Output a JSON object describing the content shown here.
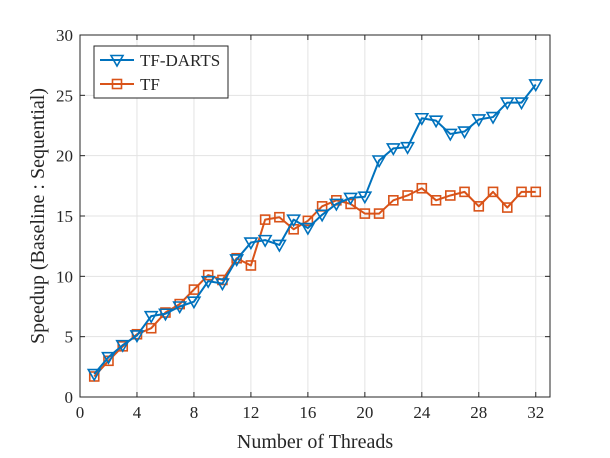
{
  "chart_data": {
    "type": "line",
    "title": "",
    "xlabel": "Number of Threads",
    "ylabel": "Speedup (Baseline : Sequential)",
    "xlim": [
      0,
      33
    ],
    "ylim": [
      0,
      30
    ],
    "xticks": [
      0,
      4,
      8,
      12,
      16,
      20,
      24,
      28,
      32
    ],
    "yticks": [
      0,
      5,
      10,
      15,
      20,
      25,
      30
    ],
    "grid": true,
    "legend_position": "top-left",
    "x": [
      1,
      2,
      3,
      4,
      5,
      6,
      7,
      8,
      9,
      10,
      11,
      12,
      13,
      14,
      15,
      16,
      17,
      18,
      19,
      20,
      21,
      22,
      23,
      24,
      25,
      26,
      27,
      28,
      29,
      30,
      31,
      32
    ],
    "series": [
      {
        "name": "TF-DARTS",
        "color": "#0072BD",
        "marker": "triangle-down",
        "values": [
          1.9,
          3.3,
          4.3,
          5.1,
          6.7,
          6.9,
          7.5,
          7.9,
          9.6,
          9.4,
          11.4,
          12.8,
          13.0,
          12.6,
          14.7,
          14.0,
          15.1,
          16.0,
          16.5,
          16.6,
          19.6,
          20.6,
          20.7,
          23.1,
          22.9,
          21.8,
          22.0,
          23.0,
          23.2,
          24.4,
          24.4,
          25.9
        ]
      },
      {
        "name": "TF",
        "color": "#D95319",
        "marker": "square",
        "values": [
          1.7,
          3.0,
          4.2,
          5.2,
          5.7,
          7.0,
          7.7,
          8.9,
          10.1,
          9.7,
          11.5,
          10.9,
          14.7,
          14.9,
          13.9,
          14.6,
          15.8,
          16.3,
          16.0,
          15.2,
          15.2,
          16.3,
          16.7,
          17.3,
          16.3,
          16.7,
          17.0,
          15.8,
          17.0,
          15.7,
          17.0,
          17.0
        ]
      }
    ]
  }
}
